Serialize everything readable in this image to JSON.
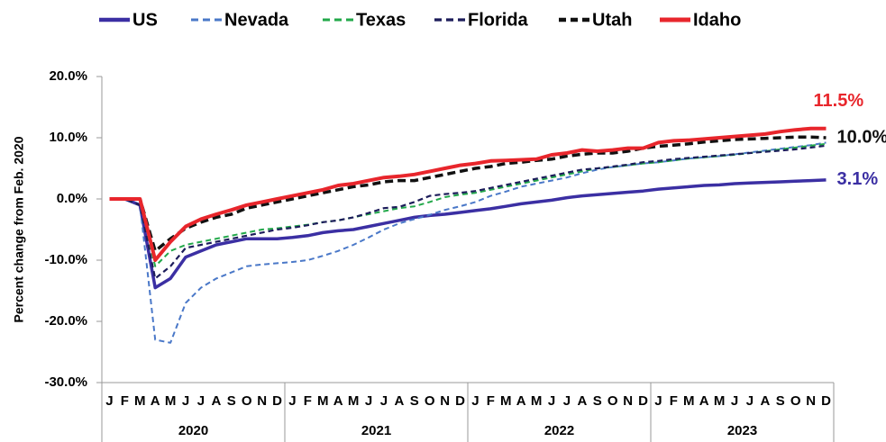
{
  "chart_data": {
    "type": "line",
    "y_axis_label": "Percent change from Feb. 2020",
    "categories": [
      "J",
      "F",
      "M",
      "A",
      "M",
      "J",
      "J",
      "A",
      "S",
      "O",
      "N",
      "D",
      "J",
      "F",
      "M",
      "A",
      "M",
      "J",
      "J",
      "A",
      "S",
      "O",
      "N",
      "D",
      "J",
      "F",
      "M",
      "A",
      "M",
      "J",
      "J",
      "A",
      "S",
      "O",
      "N",
      "D",
      "J",
      "F",
      "M",
      "A",
      "M",
      "J",
      "J",
      "A",
      "S",
      "O",
      "N",
      "D"
    ],
    "groups": [
      "2020",
      "2021",
      "2022",
      "2023"
    ],
    "ylim": [
      -30,
      20
    ],
    "yticks": [
      {
        "value": -30,
        "label": "-30.0%"
      },
      {
        "value": -20,
        "label": "-20.0%"
      },
      {
        "value": -10,
        "label": "-10.0%"
      },
      {
        "value": 0,
        "label": "0.0%"
      },
      {
        "value": 10,
        "label": "10.0%"
      },
      {
        "value": 20,
        "label": "20.0%"
      }
    ],
    "series": [
      {
        "name": "US",
        "color": "#3b2fa3",
        "dashed": false,
        "width": 3.5,
        "values": [
          0,
          0,
          -1,
          -14.5,
          -13,
          -9.5,
          -8.5,
          -7.5,
          -7,
          -6.5,
          -6.5,
          -6.5,
          -6.3,
          -6,
          -5.5,
          -5.2,
          -5,
          -4.5,
          -4,
          -3.5,
          -3,
          -2.7,
          -2.5,
          -2.2,
          -1.9,
          -1.6,
          -1.2,
          -0.8,
          -0.5,
          -0.2,
          0.2,
          0.5,
          0.7,
          0.9,
          1.1,
          1.3,
          1.6,
          1.8,
          2.0,
          2.2,
          2.3,
          2.5,
          2.6,
          2.7,
          2.8,
          2.9,
          3.0,
          3.1
        ],
        "end_label": "3.1%"
      },
      {
        "name": "Nevada",
        "color": "#4a78c8",
        "dashed": true,
        "width": 2,
        "values": [
          0,
          0,
          -1,
          -23,
          -23.5,
          -17,
          -14.5,
          -13,
          -12,
          -11,
          -10.7,
          -10.5,
          -10.3,
          -10,
          -9.3,
          -8.5,
          -7.5,
          -6.3,
          -5,
          -4,
          -3.3,
          -2.6,
          -1.8,
          -1.2,
          -0.5,
          0.5,
          1.2,
          2,
          2.5,
          3,
          3.5,
          4.2,
          4.8,
          5.2,
          5.5,
          5.8,
          6,
          6.3,
          6.6,
          6.8,
          7,
          7.3,
          7.6,
          7.9,
          8.2,
          8.5,
          8.8,
          9.2
        ]
      },
      {
        "name": "Texas",
        "color": "#22a84a",
        "dashed": true,
        "width": 2,
        "values": [
          0,
          0,
          -1,
          -11,
          -8.5,
          -7.5,
          -7,
          -6.5,
          -6,
          -5.5,
          -5,
          -4.8,
          -4.5,
          -4.2,
          -3.8,
          -3.5,
          -3,
          -2.5,
          -2,
          -1.5,
          -1.2,
          -0.5,
          0.3,
          0.7,
          1,
          1.5,
          2,
          2.5,
          3,
          3.5,
          4,
          4.5,
          5,
          5.2,
          5.5,
          5.8,
          6,
          6.3,
          6.6,
          6.8,
          7,
          7.2,
          7.5,
          7.8,
          8.1,
          8.4,
          8.7,
          9.0
        ]
      },
      {
        "name": "Florida",
        "color": "#1c1c5a",
        "dashed": true,
        "width": 2.2,
        "values": [
          0,
          0,
          -1,
          -13,
          -11,
          -8,
          -7.5,
          -7,
          -6.5,
          -6,
          -5.5,
          -5,
          -4.7,
          -4.3,
          -3.8,
          -3.5,
          -3,
          -2.3,
          -1.5,
          -1.3,
          -0.5,
          0.5,
          0.8,
          1,
          1.3,
          1.8,
          2.3,
          2.8,
          3.3,
          3.8,
          4.3,
          4.8,
          5,
          5.3,
          5.6,
          6,
          6.2,
          6.5,
          6.7,
          6.9,
          7.1,
          7.3,
          7.5,
          7.7,
          7.9,
          8.1,
          8.4,
          8.7
        ]
      },
      {
        "name": "Utah",
        "color": "#111111",
        "dashed": true,
        "width": 3.5,
        "values": [
          0,
          0,
          0,
          -8.5,
          -6.5,
          -4.8,
          -3.8,
          -3,
          -2.5,
          -1.5,
          -1,
          -0.5,
          0,
          0.5,
          1,
          1.5,
          2,
          2.3,
          2.8,
          3,
          3,
          3.5,
          4,
          4.5,
          5,
          5.3,
          5.8,
          6,
          6.3,
          6.5,
          7,
          7.3,
          7.5,
          7.5,
          7.8,
          8.3,
          8.6,
          8.8,
          9,
          9.3,
          9.5,
          9.7,
          9.8,
          9.9,
          10,
          10.1,
          10.1,
          10.0
        ],
        "end_label": "10.0%"
      },
      {
        "name": "Idaho",
        "color": "#e8262c",
        "dashed": false,
        "width": 4,
        "values": [
          0,
          0,
          0,
          -10,
          -7,
          -4.5,
          -3.3,
          -2.5,
          -1.8,
          -1,
          -0.5,
          0,
          0.5,
          1,
          1.5,
          2.2,
          2.5,
          3,
          3.5,
          3.7,
          4,
          4.5,
          5,
          5.5,
          5.8,
          6.2,
          6.3,
          6.4,
          6.5,
          7.2,
          7.5,
          8,
          7.8,
          8,
          8.3,
          8.3,
          9.2,
          9.5,
          9.6,
          9.8,
          10,
          10.2,
          10.4,
          10.6,
          11,
          11.3,
          11.5,
          11.5
        ],
        "end_label": "11.5%"
      }
    ]
  }
}
